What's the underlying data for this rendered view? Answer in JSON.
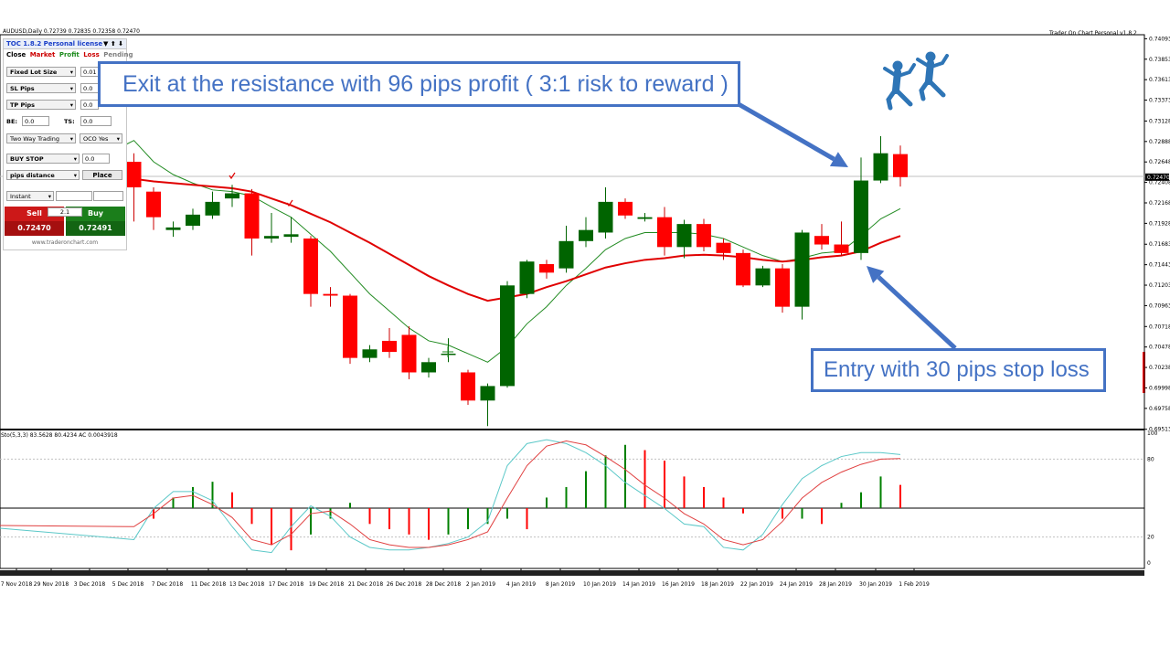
{
  "header": {
    "symbol_info": "AUDUSD,Daily  0.72739 0.72835 0.72358 0.72470",
    "brand": "Trader On Chart Personal v1.8.2"
  },
  "indicator": {
    "label": "Sto(5,3,3) 83.5628 80.4234  AC 0.0043918"
  },
  "panel": {
    "title": "TOC 1.8.2 Personal license",
    "title_arrows": "▼ ⬆ ⬇",
    "tabs": [
      {
        "label": "Close",
        "color": "#000000"
      },
      {
        "label": "Market",
        "color": "#cc0000"
      },
      {
        "label": "Profit",
        "color": "#1b8a1b"
      },
      {
        "label": "Loss",
        "color": "#cc0000"
      },
      {
        "label": "Pending",
        "color": "#808080"
      }
    ],
    "lot_mode": "Fixed Lot Size",
    "lot_value": "0.01",
    "sl_mode": "SL Pips",
    "sl_value": "0.0",
    "tp_mode": "TP Pips",
    "tp_value": "0.0",
    "be_label": "BE:",
    "be_value": "0.0",
    "ts_label": "TS:",
    "ts_value": "0.0",
    "trade_mode": "Two Way Trading",
    "oco": "OCO Yes",
    "order_type": "BUY STOP",
    "order_value": "0.0",
    "distance_mode": "pips distance",
    "place_label": "Place",
    "exec_mode": "Instant",
    "sell_label": "Sell",
    "sell_price": "0.72470",
    "buy_label": "Buy",
    "buy_price": "0.72491",
    "lot_display": "2.1",
    "site": "www.traderonchart.com"
  },
  "annotations": {
    "exit": "Exit at the resistance with 96 pips profit ( 3:1 risk to reward )",
    "entry": "Entry with 30 pips stop loss"
  },
  "colors": {
    "bull": "#006400",
    "bear": "#ff0000",
    "ma_fast": "#228b22",
    "ma_slow": "#e00000",
    "stoch_main": "#5bc8c8",
    "stoch_signal": "#e04040",
    "callout": "#4472c4"
  },
  "chart_data": {
    "type": "candlestick",
    "symbol": "AUDUSD",
    "timeframe": "Daily",
    "price_axis": {
      "range": [
        0.6951,
        0.7414
      ],
      "ticks": [
        "0.74093",
        "0.73853",
        "0.73613",
        "0.73373",
        "0.73128",
        "0.72888",
        "0.72648",
        "0.72408",
        "0.72168",
        "0.71928",
        "0.71683",
        "0.71443",
        "0.71203",
        "0.70963",
        "0.70718",
        "0.70478",
        "0.70238",
        "0.69998",
        "0.69758",
        "0.69513"
      ],
      "current_price": "0.72470"
    },
    "date_axis": [
      "7 Nov 2018",
      "29 Nov 2018",
      "3 Dec 2018",
      "5 Dec 2018",
      "7 Dec 2018",
      "11 Dec 2018",
      "13 Dec 2018",
      "17 Dec 2018",
      "19 Dec 2018",
      "21 Dec 2018",
      "26 Dec 2018",
      "28 Dec 2018",
      "2 Jan 2019",
      "4 Jan 2019",
      "8 Jan 2019",
      "10 Jan 2019",
      "14 Jan 2019",
      "16 Jan 2019",
      "18 Jan 2019",
      "22 Jan 2019",
      "24 Jan 2019",
      "28 Jan 2019",
      "30 Jan 2019",
      "1 Feb 2019"
    ],
    "candles": [
      {
        "o": 0.7265,
        "h": 0.7275,
        "l": 0.7195,
        "c": 0.7235
      },
      {
        "o": 0.723,
        "h": 0.7235,
        "l": 0.7185,
        "c": 0.72
      },
      {
        "o": 0.7185,
        "h": 0.7195,
        "l": 0.7177,
        "c": 0.7188
      },
      {
        "o": 0.719,
        "h": 0.721,
        "l": 0.7185,
        "c": 0.7203
      },
      {
        "o": 0.7202,
        "h": 0.723,
        "l": 0.7198,
        "c": 0.7218
      },
      {
        "o": 0.7222,
        "h": 0.7238,
        "l": 0.7212,
        "c": 0.7228
      },
      {
        "o": 0.7228,
        "h": 0.7233,
        "l": 0.7155,
        "c": 0.7175
      },
      {
        "o": 0.7175,
        "h": 0.7205,
        "l": 0.717,
        "c": 0.7178
      },
      {
        "o": 0.7177,
        "h": 0.72,
        "l": 0.717,
        "c": 0.718
      },
      {
        "o": 0.7175,
        "h": 0.7178,
        "l": 0.7095,
        "c": 0.711
      },
      {
        "o": 0.711,
        "h": 0.7118,
        "l": 0.7095,
        "c": 0.7108
      },
      {
        "o": 0.7108,
        "h": 0.711,
        "l": 0.7028,
        "c": 0.7035
      },
      {
        "o": 0.7035,
        "h": 0.705,
        "l": 0.703,
        "c": 0.7045
      },
      {
        "o": 0.7055,
        "h": 0.707,
        "l": 0.7035,
        "c": 0.7042
      },
      {
        "o": 0.7062,
        "h": 0.7072,
        "l": 0.701,
        "c": 0.7018
      },
      {
        "o": 0.7018,
        "h": 0.7035,
        "l": 0.7012,
        "c": 0.703
      },
      {
        "o": 0.704,
        "h": 0.7058,
        "l": 0.703,
        "c": 0.704
      },
      {
        "o": 0.7018,
        "h": 0.7021,
        "l": 0.698,
        "c": 0.6985
      },
      {
        "o": 0.6985,
        "h": 0.7005,
        "l": 0.6955,
        "c": 0.7002
      },
      {
        "o": 0.7002,
        "h": 0.7125,
        "l": 0.7,
        "c": 0.712
      },
      {
        "o": 0.711,
        "h": 0.715,
        "l": 0.7105,
        "c": 0.7148
      },
      {
        "o": 0.7145,
        "h": 0.715,
        "l": 0.7128,
        "c": 0.7135
      },
      {
        "o": 0.714,
        "h": 0.719,
        "l": 0.7135,
        "c": 0.7172
      },
      {
        "o": 0.7172,
        "h": 0.72,
        "l": 0.7165,
        "c": 0.7185
      },
      {
        "o": 0.7182,
        "h": 0.7235,
        "l": 0.7175,
        "c": 0.7218
      },
      {
        "o": 0.7218,
        "h": 0.7222,
        "l": 0.7198,
        "c": 0.7202
      },
      {
        "o": 0.7198,
        "h": 0.7205,
        "l": 0.7195,
        "c": 0.72
      },
      {
        "o": 0.72,
        "h": 0.7212,
        "l": 0.7155,
        "c": 0.7165
      },
      {
        "o": 0.7165,
        "h": 0.7197,
        "l": 0.7152,
        "c": 0.7192
      },
      {
        "o": 0.7192,
        "h": 0.7198,
        "l": 0.716,
        "c": 0.7165
      },
      {
        "o": 0.717,
        "h": 0.7175,
        "l": 0.715,
        "c": 0.7158
      },
      {
        "o": 0.7158,
        "h": 0.7162,
        "l": 0.7118,
        "c": 0.712
      },
      {
        "o": 0.712,
        "h": 0.7143,
        "l": 0.7118,
        "c": 0.714
      },
      {
        "o": 0.714,
        "h": 0.7145,
        "l": 0.7088,
        "c": 0.7095
      },
      {
        "o": 0.7095,
        "h": 0.7185,
        "l": 0.708,
        "c": 0.7182
      },
      {
        "o": 0.7178,
        "h": 0.7192,
        "l": 0.7162,
        "c": 0.7168
      },
      {
        "o": 0.7168,
        "h": 0.7195,
        "l": 0.7155,
        "c": 0.7158
      },
      {
        "o": 0.7158,
        "h": 0.727,
        "l": 0.715,
        "c": 0.7243
      },
      {
        "o": 0.7243,
        "h": 0.7295,
        "l": 0.724,
        "c": 0.7275
      },
      {
        "o": 0.7274,
        "h": 0.7284,
        "l": 0.7236,
        "c": 0.7247
      }
    ],
    "ma_fast": [
      0.729,
      0.7265,
      0.725,
      0.724,
      0.7232,
      0.723,
      0.7225,
      0.7212,
      0.72,
      0.718,
      0.716,
      0.7135,
      0.711,
      0.709,
      0.707,
      0.7055,
      0.705,
      0.704,
      0.703,
      0.7048,
      0.7075,
      0.7095,
      0.712,
      0.714,
      0.7162,
      0.7175,
      0.7182,
      0.7182,
      0.7182,
      0.718,
      0.7175,
      0.7165,
      0.7155,
      0.7148,
      0.7152,
      0.7158,
      0.716,
      0.7178,
      0.7198,
      0.721
    ],
    "ma_slow": [
      0.7245,
      0.7242,
      0.724,
      0.7238,
      0.7236,
      0.7234,
      0.723,
      0.7222,
      0.7214,
      0.7204,
      0.7194,
      0.7182,
      0.717,
      0.7157,
      0.7144,
      0.7131,
      0.712,
      0.711,
      0.7102,
      0.7106,
      0.711,
      0.7118,
      0.7125,
      0.7133,
      0.7141,
      0.7146,
      0.715,
      0.7152,
      0.7155,
      0.7156,
      0.7155,
      0.7153,
      0.715,
      0.7148,
      0.715,
      0.7153,
      0.7155,
      0.716,
      0.717,
      0.7178
    ],
    "oscillator": {
      "name": "Sto(5,3,3)",
      "main": 83.5628,
      "signal": 80.4234,
      "ac": 0.0043918,
      "levels": [
        20,
        80
      ],
      "ticks": [
        "100",
        "80",
        "20",
        "0"
      ],
      "main_series": [
        18,
        42,
        55,
        55,
        48,
        28,
        10,
        8,
        28,
        44,
        36,
        20,
        12,
        10,
        10,
        12,
        15,
        20,
        32,
        75,
        92,
        95,
        92,
        85,
        75,
        62,
        52,
        42,
        30,
        28,
        12,
        10,
        22,
        45,
        65,
        75,
        82,
        85,
        85,
        83.56
      ],
      "signal_series": [
        28,
        38,
        50,
        52,
        45,
        35,
        18,
        14,
        22,
        38,
        40,
        30,
        18,
        14,
        12,
        12,
        14,
        18,
        24,
        50,
        75,
        90,
        94,
        91,
        82,
        72,
        60,
        50,
        38,
        30,
        18,
        14,
        18,
        32,
        50,
        62,
        70,
        76,
        80,
        80.42
      ],
      "ac_bars": [
        0,
        -0.002,
        0.002,
        0.004,
        0.005,
        0.003,
        -0.003,
        -0.007,
        -0.008,
        -0.005,
        -0.002,
        0.001,
        -0.003,
        -0.004,
        -0.005,
        -0.006,
        -0.005,
        -0.004,
        -0.003,
        -0.002,
        -0.004,
        0.002,
        0.004,
        0.007,
        0.01,
        0.012,
        0.011,
        0.009,
        0.006,
        0.004,
        0.002,
        -0.001,
        0,
        -0.002,
        -0.002,
        -0.003,
        0.001,
        0.003,
        0.006,
        0.0044
      ]
    }
  }
}
